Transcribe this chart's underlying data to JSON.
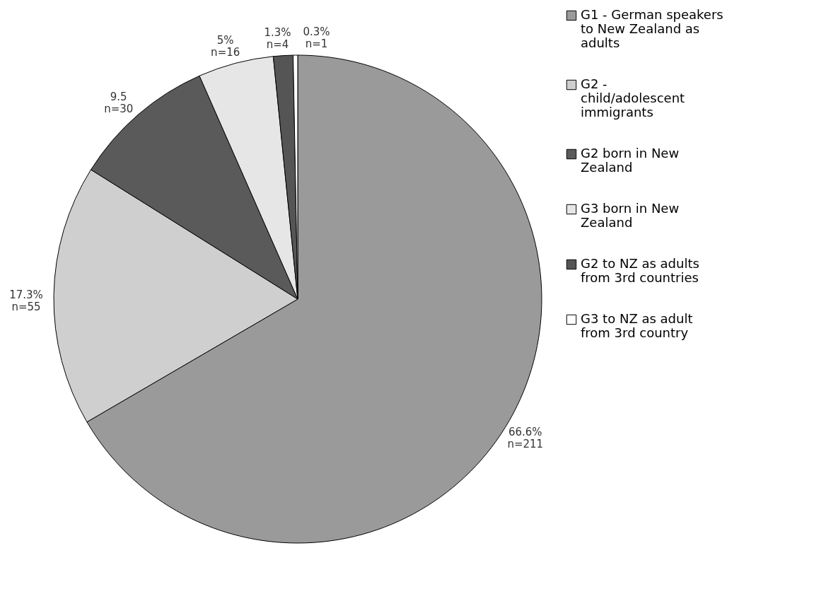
{
  "chart_data": {
    "type": "pie",
    "categories": [
      "G1 - German speakers to New Zealand as adults",
      "G2 - child/adolescent immigrants",
      "G2 born in New Zealand",
      "G3 born in New Zealand",
      "G2 to NZ as adults from 3rd countries",
      "G3 to NZ as adult from 3rd country"
    ],
    "values": [
      66.6,
      17.3,
      9.5,
      5,
      1.3,
      0.3
    ],
    "value_labels": [
      "66.6%\nn=211",
      "17.3%\nn=55",
      "9.5\nn=30",
      "5%\nn=16",
      "1.3%\nn=4",
      "0.3%\nn=1"
    ],
    "colors": [
      "#9a9a9a",
      "#cfcfcf",
      "#5a5a5a",
      "#e6e6e6",
      "#555555",
      "#ffffff"
    ],
    "legend": "right"
  }
}
